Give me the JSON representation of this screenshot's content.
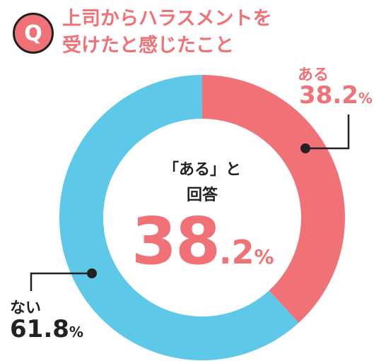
{
  "header": {
    "badge": "Q",
    "title_line1": "上司からハラスメントを",
    "title_line2": "受けたと感じたこと"
  },
  "center": {
    "line1": "「ある」と",
    "line2": "回答",
    "value_int": "38",
    "value_dec": ".2",
    "value_unit": "%"
  },
  "labels": {
    "yes_name": "ある",
    "yes_value": "38.2",
    "yes_unit": "%",
    "no_name": "ない",
    "no_value": "61.8",
    "no_unit": "%"
  },
  "colors": {
    "yes": "#f07276",
    "no": "#5ec8e8",
    "text": "#222222"
  },
  "chart_data": {
    "type": "pie",
    "categories": [
      "ある",
      "ない"
    ],
    "values": [
      38.2,
      61.8
    ]
  }
}
